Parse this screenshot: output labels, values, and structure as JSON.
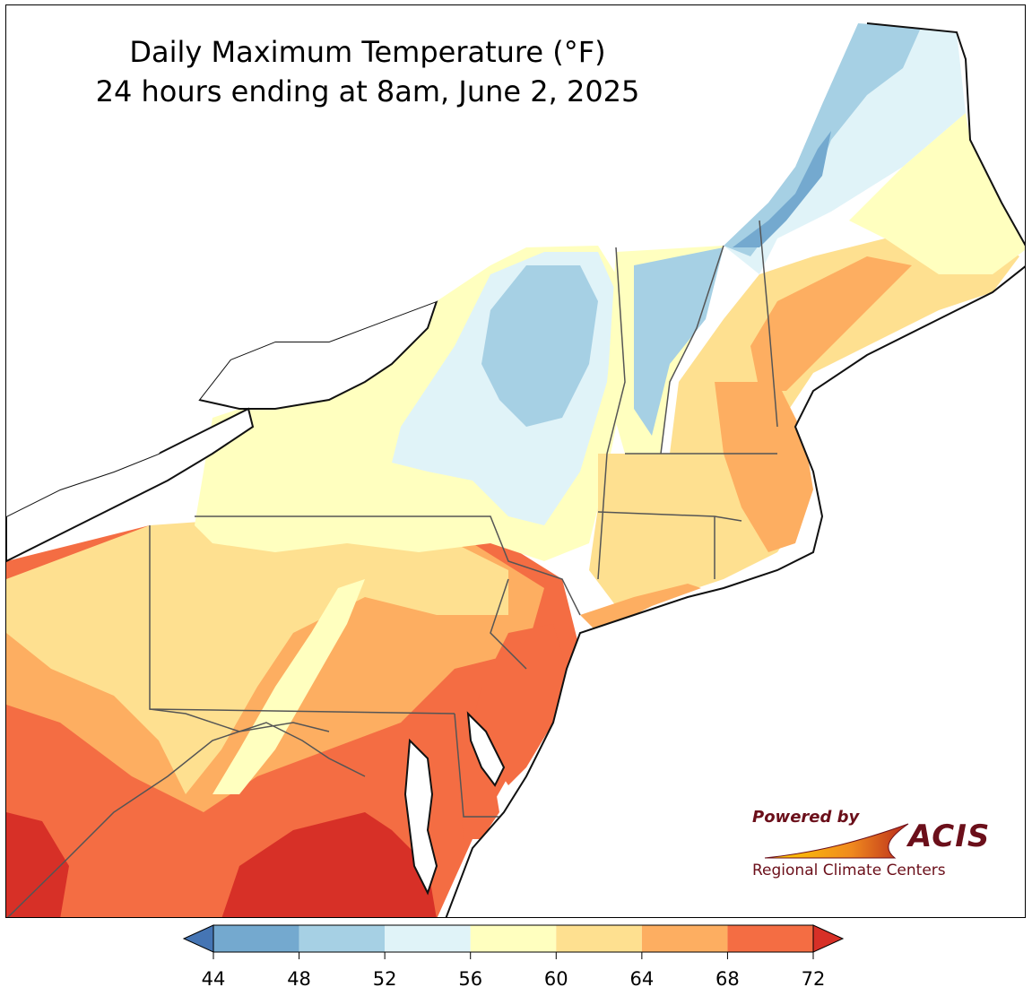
{
  "title": {
    "line1": "Daily Maximum Temperature (°F)",
    "line2": "24 hours ending at 8am, June 2, 2025"
  },
  "logo": {
    "powered_by": "Powered by",
    "name": "ACIS",
    "subtitle": "Regional Climate Centers"
  },
  "legend": {
    "ticks": [
      "44",
      "48",
      "52",
      "56",
      "60",
      "64",
      "68",
      "72"
    ],
    "bins": [
      {
        "min": 44,
        "max": 48,
        "color": "#74a9cf"
      },
      {
        "min": 48,
        "max": 52,
        "color": "#a6d0e4"
      },
      {
        "min": 52,
        "max": 56,
        "color": "#e0f3f8"
      },
      {
        "min": 56,
        "max": 60,
        "color": "#ffffbf"
      },
      {
        "min": 60,
        "max": 64,
        "color": "#fee090"
      },
      {
        "min": 64,
        "max": 68,
        "color": "#fdae61"
      },
      {
        "min": 68,
        "max": 72,
        "color": "#f46d43"
      }
    ],
    "below_color": "#4575b4",
    "above_color": "#d73027"
  },
  "colors": {
    "water": "#ffffff",
    "coast": "#111111",
    "state_border": "#555555"
  }
}
